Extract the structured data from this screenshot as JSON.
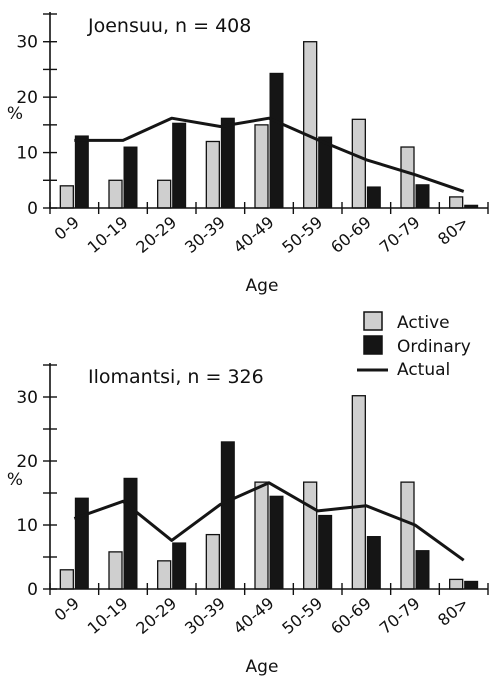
{
  "legend": {
    "items": [
      {
        "label": "Active",
        "color": "#cfcfcf"
      },
      {
        "label": "Ordinary",
        "color": "#151515"
      },
      {
        "label": "Actual",
        "color": "#151515"
      }
    ]
  },
  "chart_data": [
    {
      "type": "bar",
      "title": "Joensuu, n = 408",
      "xlabel": "Age",
      "ylabel": "%",
      "ylim": [
        0,
        35
      ],
      "yticks": [
        "0",
        "10",
        "20",
        "30"
      ],
      "categories": [
        "0-9",
        "10-19",
        "20-29",
        "30-39",
        "40-49",
        "50-59",
        "60-69",
        "70-79",
        "80>"
      ],
      "series": [
        {
          "name": "Active",
          "type": "bar",
          "color": "#cfcfcf",
          "values": [
            4,
            5,
            5,
            12,
            15,
            30,
            16,
            11,
            2
          ]
        },
        {
          "name": "Ordinary",
          "type": "bar",
          "color": "#151515",
          "values": [
            13,
            11,
            15.3,
            16.2,
            24.3,
            12.8,
            3.8,
            4.2,
            0.5
          ]
        },
        {
          "name": "Actual",
          "type": "line",
          "color": "#151515",
          "values": [
            12.2,
            12.2,
            16.2,
            14.7,
            16.2,
            12.3,
            8.7,
            6.0,
            3.0
          ]
        }
      ]
    },
    {
      "type": "bar",
      "title": "Ilomantsi, n = 326",
      "xlabel": "Age",
      "ylabel": "%",
      "ylim": [
        0,
        35
      ],
      "yticks": [
        "0",
        "10",
        "20",
        "30"
      ],
      "categories": [
        "0-9",
        "10-19",
        "20-29",
        "30-39",
        "40-49",
        "50-59",
        "60-69",
        "70-79",
        "80>"
      ],
      "series": [
        {
          "name": "Active",
          "type": "bar",
          "color": "#cfcfcf",
          "values": [
            3,
            5.8,
            4.4,
            8.5,
            16.7,
            16.7,
            30.2,
            16.7,
            1.5
          ]
        },
        {
          "name": "Ordinary",
          "type": "bar",
          "color": "#151515",
          "values": [
            14.2,
            17.3,
            7.2,
            23,
            14.5,
            11.5,
            8.2,
            6,
            1.2
          ]
        },
        {
          "name": "Actual",
          "type": "line",
          "color": "#151515",
          "values": [
            11,
            13.7,
            7.6,
            13.2,
            16.6,
            12.2,
            13,
            10,
            4.5
          ]
        }
      ]
    }
  ]
}
